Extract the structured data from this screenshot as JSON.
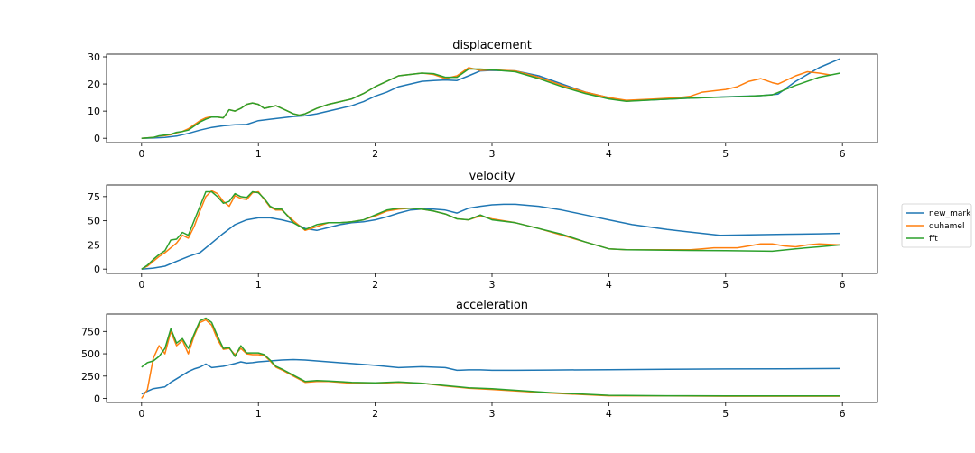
{
  "chart_data": [
    {
      "type": "line",
      "title": "displacement",
      "xlim": [
        -0.3,
        6.3
      ],
      "ylim": [
        -1.6,
        31.0
      ],
      "xticks": [
        0,
        1,
        2,
        3,
        4,
        5,
        6
      ],
      "yticks": [
        0,
        10,
        20,
        30
      ],
      "series": [
        {
          "name": "new_mark",
          "color": "#1f77b4",
          "x": [
            0,
            0.1,
            0.2,
            0.3,
            0.4,
            0.5,
            0.6,
            0.7,
            0.8,
            0.9,
            1.0,
            1.1,
            1.2,
            1.3,
            1.4,
            1.5,
            1.6,
            1.7,
            1.8,
            1.9,
            2.0,
            2.1,
            2.2,
            2.3,
            2.4,
            2.5,
            2.6,
            2.7,
            2.8,
            2.9,
            3.0,
            3.2,
            3.4,
            3.6,
            3.8,
            4.0,
            4.15,
            4.4,
            4.7,
            5.0,
            5.3,
            5.45,
            5.6,
            5.8,
            5.98
          ],
          "y": [
            0,
            0.1,
            0.3,
            0.8,
            1.8,
            3.0,
            4.0,
            4.6,
            5.0,
            5.1,
            6.5,
            7.0,
            7.5,
            8.0,
            8.3,
            9.0,
            10.0,
            11.0,
            12.0,
            13.5,
            15.5,
            17.0,
            19.0,
            20.0,
            21.0,
            21.3,
            21.5,
            21.3,
            23.0,
            24.8,
            25.0,
            24.8,
            23.0,
            20.0,
            17.0,
            15.0,
            13.7,
            14.2,
            14.8,
            15.3,
            15.7,
            16.3,
            21.0,
            26.0,
            29.3
          ]
        },
        {
          "name": "duhamel",
          "color": "#ff7f0e",
          "x": [
            0,
            0.1,
            0.15,
            0.2,
            0.25,
            0.3,
            0.35,
            0.4,
            0.45,
            0.5,
            0.55,
            0.6,
            0.65,
            0.7,
            0.75,
            0.8,
            0.85,
            0.9,
            0.95,
            1.0,
            1.05,
            1.1,
            1.15,
            1.2,
            1.25,
            1.3,
            1.35,
            1.4,
            1.5,
            1.6,
            1.7,
            1.8,
            1.9,
            2.0,
            2.1,
            2.2,
            2.3,
            2.4,
            2.5,
            2.6,
            2.7,
            2.8,
            2.9,
            3.0,
            3.2,
            3.4,
            3.6,
            3.8,
            4.0,
            4.15,
            4.4,
            4.6,
            4.7,
            4.8,
            4.9,
            5.0,
            5.1,
            5.2,
            5.3,
            5.4,
            5.45,
            5.5,
            5.6,
            5.7,
            5.8,
            5.9
          ],
          "y": [
            0,
            0.3,
            0.8,
            1.0,
            1.3,
            2.0,
            2.5,
            3.5,
            5.0,
            6.5,
            7.5,
            8.0,
            7.8,
            7.5,
            10.5,
            10.0,
            11.0,
            12.5,
            13.0,
            12.5,
            11.0,
            11.5,
            12.0,
            11.0,
            10.0,
            9.0,
            8.5,
            9.0,
            11.0,
            12.5,
            13.5,
            14.5,
            16.5,
            19.0,
            21.0,
            23.0,
            23.5,
            24.0,
            23.5,
            22.0,
            23.0,
            26.0,
            25.0,
            25.2,
            24.8,
            22.5,
            19.5,
            17.0,
            15.0,
            14.0,
            14.5,
            15.0,
            15.5,
            17.0,
            17.5,
            18.0,
            19.0,
            21.0,
            22.0,
            20.5,
            20.0,
            21.0,
            23.0,
            24.5,
            24.0,
            23.3
          ]
        },
        {
          "name": "fft",
          "color": "#2ca02c",
          "x": [
            0,
            0.1,
            0.15,
            0.2,
            0.25,
            0.3,
            0.35,
            0.4,
            0.45,
            0.5,
            0.55,
            0.6,
            0.65,
            0.7,
            0.75,
            0.8,
            0.85,
            0.9,
            0.95,
            1.0,
            1.05,
            1.1,
            1.15,
            1.2,
            1.25,
            1.3,
            1.35,
            1.4,
            1.5,
            1.6,
            1.7,
            1.8,
            1.9,
            2.0,
            2.1,
            2.2,
            2.3,
            2.4,
            2.5,
            2.6,
            2.7,
            2.8,
            2.9,
            3.0,
            3.2,
            3.4,
            3.6,
            3.8,
            4.0,
            4.15,
            4.4,
            4.7,
            5.0,
            5.2,
            5.4,
            5.6,
            5.8,
            5.98
          ],
          "y": [
            0,
            0.3,
            0.9,
            1.2,
            1.5,
            2.2,
            2.5,
            3.0,
            4.5,
            6.0,
            7.0,
            7.8,
            7.8,
            7.5,
            10.5,
            10.0,
            11.0,
            12.5,
            13.0,
            12.5,
            11.0,
            11.5,
            12.0,
            11.0,
            10.0,
            9.0,
            8.5,
            9.0,
            11.0,
            12.5,
            13.5,
            14.5,
            16.5,
            19.0,
            21.0,
            23.0,
            23.5,
            24.0,
            23.8,
            22.5,
            22.5,
            25.5,
            25.5,
            25.2,
            24.5,
            22.0,
            19.0,
            16.5,
            14.5,
            13.6,
            14.2,
            14.8,
            15.2,
            15.5,
            16.0,
            19.5,
            22.5,
            24.0
          ]
        }
      ]
    },
    {
      "type": "line",
      "title": "velocity",
      "xlim": [
        -0.3,
        6.3
      ],
      "ylim": [
        -4.5,
        87.0
      ],
      "xticks": [
        0,
        1,
        2,
        3,
        4,
        5,
        6
      ],
      "yticks": [
        0,
        25,
        50,
        75
      ],
      "series": [
        {
          "name": "new_mark",
          "color": "#1f77b4",
          "x": [
            0,
            0.1,
            0.2,
            0.3,
            0.4,
            0.45,
            0.5,
            0.6,
            0.7,
            0.8,
            0.9,
            1.0,
            1.1,
            1.2,
            1.3,
            1.4,
            1.5,
            1.6,
            1.7,
            1.8,
            1.9,
            2.0,
            2.1,
            2.2,
            2.3,
            2.4,
            2.5,
            2.6,
            2.7,
            2.8,
            2.9,
            3.0,
            3.1,
            3.2,
            3.4,
            3.6,
            3.8,
            4.0,
            4.2,
            4.5,
            4.8,
            4.95,
            5.2,
            5.5,
            5.8,
            5.98
          ],
          "y": [
            0,
            1,
            3,
            8,
            13,
            15,
            17,
            27,
            37,
            46,
            51,
            53,
            53,
            51,
            48,
            42,
            40,
            43,
            46,
            48,
            49,
            51,
            54,
            58,
            61,
            62,
            62,
            61,
            58,
            63,
            65,
            66.5,
            67,
            67,
            65,
            61,
            56,
            51,
            46,
            41,
            37,
            35,
            35.5,
            36,
            36.5,
            37
          ]
        },
        {
          "name": "duhamel",
          "color": "#ff7f0e",
          "x": [
            0,
            0.05,
            0.1,
            0.15,
            0.2,
            0.25,
            0.3,
            0.35,
            0.4,
            0.45,
            0.5,
            0.55,
            0.6,
            0.65,
            0.7,
            0.75,
            0.8,
            0.85,
            0.9,
            0.95,
            1.0,
            1.05,
            1.1,
            1.15,
            1.2,
            1.3,
            1.4,
            1.5,
            1.6,
            1.7,
            1.8,
            1.9,
            2.0,
            2.1,
            2.2,
            2.3,
            2.4,
            2.5,
            2.6,
            2.7,
            2.8,
            2.9,
            3.0,
            3.2,
            3.4,
            3.6,
            3.8,
            4.0,
            4.15,
            4.4,
            4.6,
            4.7,
            4.8,
            4.9,
            5.0,
            5.1,
            5.2,
            5.3,
            5.4,
            5.5,
            5.6,
            5.7,
            5.8,
            5.98
          ],
          "y": [
            0,
            3,
            8,
            13,
            17,
            22,
            27,
            35,
            32,
            44,
            60,
            75,
            81,
            78,
            70,
            65,
            76,
            73,
            72,
            79,
            80,
            72,
            64,
            61,
            61,
            50,
            40,
            44,
            48,
            48,
            49,
            51,
            55,
            60,
            62,
            63,
            62,
            60,
            57,
            52,
            51,
            55,
            52,
            48,
            42,
            35,
            28,
            21,
            20,
            20,
            20,
            20,
            21,
            22,
            22,
            22,
            24,
            26,
            26,
            24,
            23,
            25,
            26,
            25
          ]
        },
        {
          "name": "fft",
          "color": "#2ca02c",
          "x": [
            0,
            0.05,
            0.1,
            0.15,
            0.2,
            0.25,
            0.3,
            0.35,
            0.4,
            0.45,
            0.5,
            0.55,
            0.6,
            0.65,
            0.7,
            0.75,
            0.8,
            0.85,
            0.9,
            0.95,
            1.0,
            1.05,
            1.1,
            1.15,
            1.2,
            1.3,
            1.4,
            1.5,
            1.6,
            1.7,
            1.8,
            1.9,
            2.0,
            2.1,
            2.2,
            2.3,
            2.4,
            2.5,
            2.6,
            2.7,
            2.8,
            2.9,
            3.0,
            3.2,
            3.4,
            3.6,
            3.8,
            4.0,
            4.15,
            4.5,
            5.0,
            5.4,
            5.6,
            5.8,
            5.98
          ],
          "y": [
            0,
            4,
            10,
            15,
            19,
            30,
            31,
            38,
            35,
            50,
            65,
            80,
            80,
            75,
            68,
            70,
            78,
            75,
            74,
            80,
            79,
            73,
            65,
            62,
            62,
            48,
            41,
            46,
            48,
            48,
            49,
            51,
            56,
            61,
            63,
            63,
            62,
            60,
            57,
            52,
            51,
            56,
            51,
            48,
            42,
            36,
            28,
            21,
            20,
            19.5,
            19,
            18.5,
            21,
            23,
            25
          ]
        }
      ]
    },
    {
      "type": "line",
      "title": "acceleration",
      "xlim": [
        -0.3,
        6.3
      ],
      "ylim": [
        -45,
        945
      ],
      "xticks": [
        0,
        1,
        2,
        3,
        4,
        5,
        6
      ],
      "yticks": [
        0,
        250,
        500,
        750
      ],
      "series": [
        {
          "name": "new_mark",
          "color": "#1f77b4",
          "x": [
            0,
            0.05,
            0.1,
            0.15,
            0.2,
            0.25,
            0.3,
            0.35,
            0.4,
            0.45,
            0.5,
            0.55,
            0.6,
            0.7,
            0.8,
            0.85,
            0.9,
            0.95,
            1.0,
            1.1,
            1.2,
            1.3,
            1.4,
            1.6,
            1.8,
            2.0,
            2.2,
            2.4,
            2.6,
            2.7,
            2.8,
            2.9,
            3.0,
            3.2,
            3.5,
            4.0,
            4.5,
            5.0,
            5.5,
            5.98
          ],
          "y": [
            50,
            80,
            110,
            120,
            130,
            180,
            220,
            260,
            300,
            330,
            350,
            385,
            345,
            360,
            390,
            410,
            395,
            400,
            410,
            420,
            430,
            435,
            430,
            410,
            390,
            370,
            345,
            355,
            345,
            315,
            320,
            320,
            315,
            315,
            318,
            322,
            326,
            330,
            332,
            335
          ]
        },
        {
          "name": "duhamel",
          "color": "#ff7f0e",
          "x": [
            0,
            0.05,
            0.1,
            0.15,
            0.2,
            0.25,
            0.3,
            0.35,
            0.4,
            0.45,
            0.5,
            0.55,
            0.6,
            0.65,
            0.7,
            0.75,
            0.8,
            0.85,
            0.9,
            0.95,
            1.0,
            1.05,
            1.1,
            1.15,
            1.2,
            1.3,
            1.4,
            1.5,
            1.6,
            1.8,
            2.0,
            2.2,
            2.4,
            2.6,
            2.8,
            3.0,
            3.5,
            4.0,
            4.5,
            5.0,
            5.5,
            5.98
          ],
          "y": [
            0,
            100,
            450,
            590,
            500,
            750,
            590,
            650,
            500,
            700,
            850,
            880,
            820,
            660,
            550,
            560,
            490,
            560,
            500,
            490,
            490,
            480,
            420,
            350,
            320,
            250,
            180,
            190,
            190,
            170,
            170,
            180,
            170,
            140,
            115,
            100,
            60,
            30,
            28,
            25,
            25,
            25
          ]
        },
        {
          "name": "fft",
          "color": "#2ca02c",
          "x": [
            0,
            0.05,
            0.1,
            0.15,
            0.2,
            0.25,
            0.3,
            0.35,
            0.4,
            0.45,
            0.5,
            0.55,
            0.6,
            0.65,
            0.7,
            0.75,
            0.8,
            0.85,
            0.9,
            0.95,
            1.0,
            1.05,
            1.1,
            1.15,
            1.2,
            1.3,
            1.4,
            1.5,
            1.6,
            1.8,
            2.0,
            2.2,
            2.4,
            2.6,
            2.8,
            3.0,
            3.5,
            4.0,
            4.5,
            5.0,
            5.5,
            5.98
          ],
          "y": [
            350,
            400,
            420,
            470,
            560,
            780,
            620,
            670,
            560,
            720,
            870,
            900,
            850,
            700,
            560,
            570,
            470,
            590,
            510,
            510,
            510,
            490,
            430,
            360,
            330,
            260,
            190,
            200,
            195,
            180,
            175,
            185,
            170,
            145,
            120,
            110,
            65,
            35,
            30,
            28,
            28,
            28
          ]
        }
      ]
    }
  ],
  "legend": {
    "placement": "right",
    "items": [
      {
        "label": "new_mark",
        "color": "#1f77b4"
      },
      {
        "label": "duhamel",
        "color": "#ff7f0e"
      },
      {
        "label": "fft",
        "color": "#2ca02c"
      }
    ]
  }
}
